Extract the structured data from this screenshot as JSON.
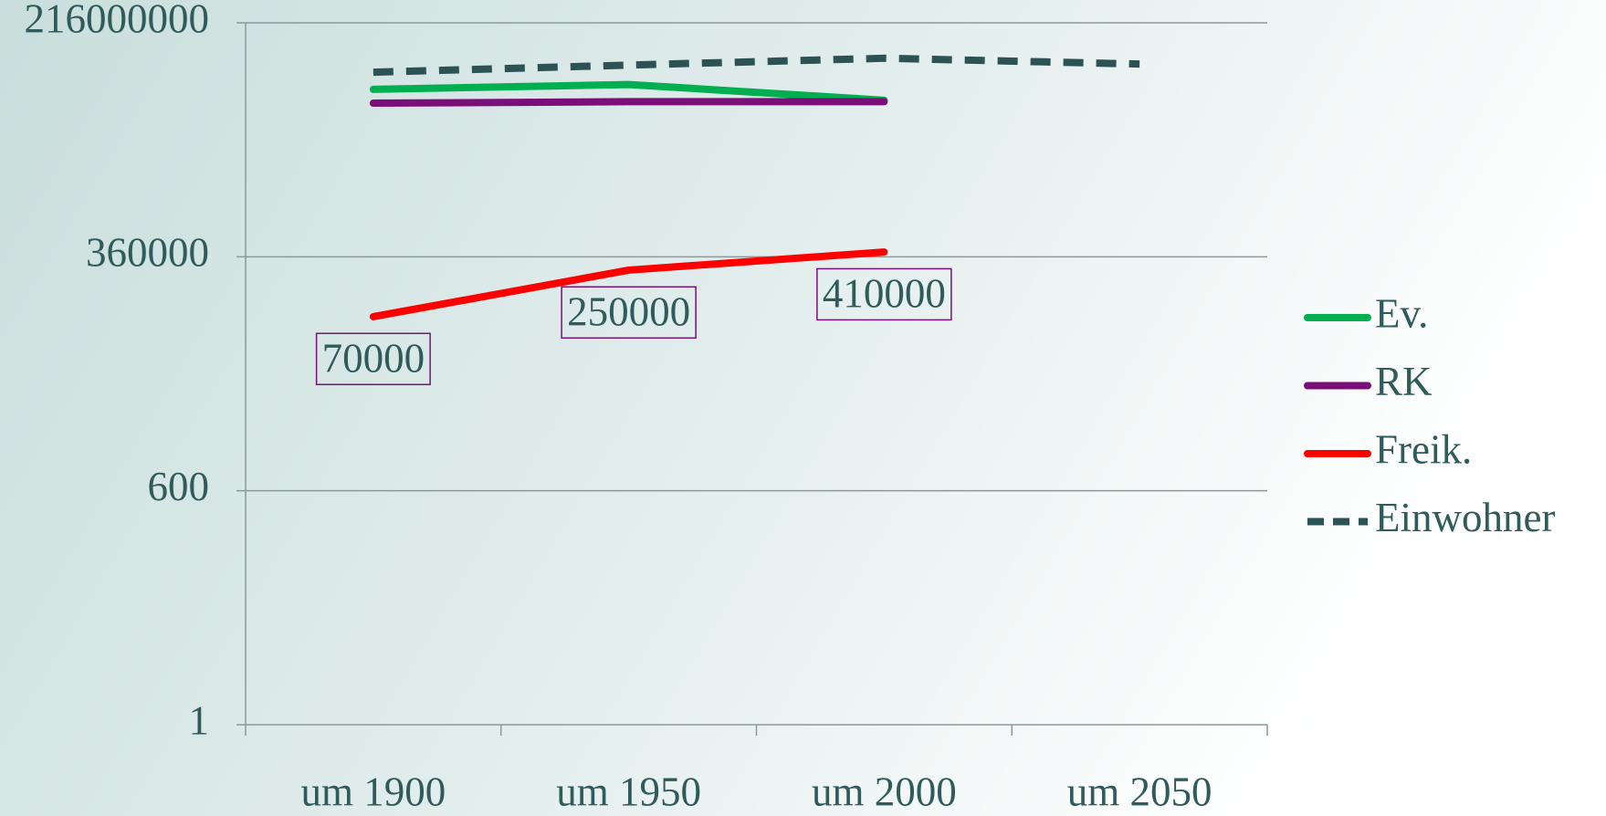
{
  "chart_data": {
    "type": "line",
    "categories": [
      "um 1900",
      "um 1950",
      "um 2000",
      "um 2050"
    ],
    "series": [
      {
        "name": "Ev.",
        "color": "#00b050",
        "values": [
          35000000,
          40000000,
          26000000,
          null
        ]
      },
      {
        "name": "RK",
        "color": "#7a0f7a",
        "values": [
          24000000,
          25000000,
          25000000,
          null
        ]
      },
      {
        "name": "Freik.",
        "color": "#ff0000",
        "values": [
          70000,
          250000,
          410000,
          null
        ],
        "data_labels": true
      },
      {
        "name": "Einwohner",
        "color": "#2d5255",
        "dashed": true,
        "values": [
          56000000,
          68000000,
          82000000,
          70000000
        ]
      }
    ],
    "ylim": [
      1,
      216000000
    ],
    "yticks": [
      1,
      600,
      360000,
      216000000
    ],
    "log_scale": true,
    "grid": true,
    "legend": "right"
  }
}
